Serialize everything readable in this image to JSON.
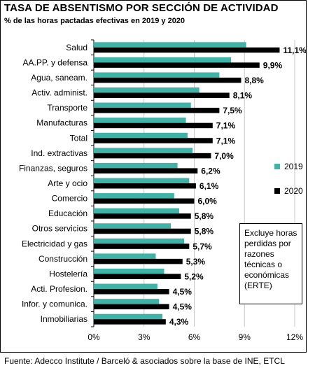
{
  "header": {
    "title": "TASA DE ABSENTISMO POR SECCIÓN DE ACTIVIDAD",
    "subtitle": "% de las horas pactadas efectivas en 2019 y 2020"
  },
  "note": "Excluye horas perdidas por razones técnicas o económicas (ERTE)",
  "source": "Fuente: Adecco Institute / Barceló & asociados sobre la base de INE, ETCL",
  "colors": {
    "s2019": "#3fb3a8",
    "s2020": "#000000"
  },
  "chart_data": {
    "type": "bar",
    "orientation": "horizontal",
    "categories": [
      "Salud",
      "AA.PP. y defensa",
      "Agua, saneam.",
      "Activ. administ.",
      "Transporte",
      "Manufacturas",
      "Total",
      "Ind. extractivas",
      "Finanzas, seguros",
      "Arte y ocio",
      "Comercio",
      "Educación",
      "Otros servicios",
      "Electricidad y gas",
      "Construcción",
      "Hostelería",
      "Acti. Profesion.",
      "Infor. y comunica.",
      "Inmobiliarias"
    ],
    "series": [
      {
        "name": "2019",
        "values": [
          9.1,
          8.2,
          7.5,
          6.3,
          5.8,
          5.5,
          5.6,
          5.9,
          5.0,
          5.7,
          4.8,
          5.1,
          4.6,
          5.4,
          3.7,
          4.2,
          3.8,
          3.9,
          4.1
        ]
      },
      {
        "name": "2020",
        "values": [
          11.1,
          9.9,
          8.8,
          8.1,
          7.5,
          7.1,
          7.1,
          7.0,
          6.2,
          6.1,
          6.0,
          5.8,
          5.8,
          5.7,
          5.3,
          5.2,
          4.5,
          4.5,
          4.3
        ]
      }
    ],
    "data_labels": [
      "11,1%",
      "9,9%",
      "8,8%",
      "8,1%",
      "7,5%",
      "7,1%",
      "7,1%",
      "7,0%",
      "6,2%",
      "6,1%",
      "6,0%",
      "5,8%",
      "5,8%",
      "5,7%",
      "5,3%",
      "5,2%",
      "4,5%",
      "4,5%",
      "4,3%"
    ],
    "xlim": [
      0,
      12
    ],
    "xticks": [
      0,
      3,
      6,
      9,
      12
    ],
    "xtick_labels": [
      "0%",
      "3%",
      "6%",
      "9%",
      "12%"
    ],
    "grid": "vertical",
    "legend_position": "right"
  }
}
